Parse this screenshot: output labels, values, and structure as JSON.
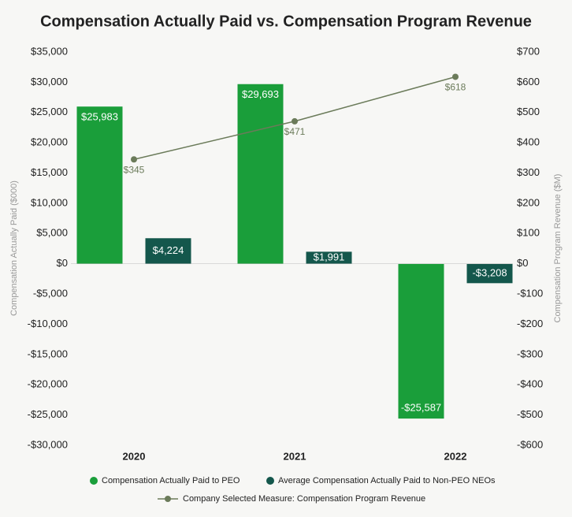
{
  "chart_data": {
    "type": "bar_line",
    "title": "Compensation Actually Paid vs. Compensation Program Revenue",
    "y_label": "Compensation Actually Paid ($000)",
    "y2_label": "Compensation Program Revenue ($M)",
    "categories": [
      "2020",
      "2021",
      "2022"
    ],
    "series": [
      {
        "name": "Compensation Actually Paid to PEO",
        "type": "bar",
        "color": "#1a9e3a",
        "values": [
          25983,
          29693,
          -25587
        ],
        "value_labels": [
          "$25,983",
          "$29,693",
          "-$25,587"
        ]
      },
      {
        "name": "Average Compensation Actually Paid to Non-PEO NEOs",
        "type": "bar",
        "color": "#14574c",
        "values": [
          4224,
          1991,
          -3208
        ],
        "value_labels": [
          "$4,224",
          "$1,991",
          "-$3,208"
        ]
      },
      {
        "name": "Company Selected Measure: Compensation Program Revenue",
        "type": "line",
        "axis": "y2",
        "color": "#6b7b5a",
        "values": [
          345,
          471,
          618
        ],
        "value_labels": [
          "$345",
          "$471",
          "$618"
        ]
      }
    ],
    "ylim": [
      -30000,
      35000
    ],
    "yticks": [
      {
        "value": -30000,
        "label": "-$30,000"
      },
      {
        "value": -25000,
        "label": "-$25,000"
      },
      {
        "value": -20000,
        "label": "-$20,000"
      },
      {
        "value": -15000,
        "label": "-$15,000"
      },
      {
        "value": -10000,
        "label": "-$10,000"
      },
      {
        "value": -5000,
        "label": "-$5,000"
      },
      {
        "value": 0,
        "label": "$0"
      },
      {
        "value": 5000,
        "label": "$5,000"
      },
      {
        "value": 10000,
        "label": "$10,000"
      },
      {
        "value": 15000,
        "label": "$15,000"
      },
      {
        "value": 20000,
        "label": "$20,000"
      },
      {
        "value": 25000,
        "label": "$25,000"
      },
      {
        "value": 30000,
        "label": "$30,000"
      },
      {
        "value": 35000,
        "label": "$35,000"
      }
    ],
    "y2lim": [
      -600,
      700
    ],
    "y2ticks": [
      {
        "value": -600,
        "label": "-$600"
      },
      {
        "value": -500,
        "label": "-$500"
      },
      {
        "value": -400,
        "label": "-$400"
      },
      {
        "value": -300,
        "label": "-$300"
      },
      {
        "value": -200,
        "label": "-$200"
      },
      {
        "value": -100,
        "label": "-$100"
      },
      {
        "value": 0,
        "label": "$0"
      },
      {
        "value": 100,
        "label": "$100"
      },
      {
        "value": 200,
        "label": "$200"
      },
      {
        "value": 300,
        "label": "$300"
      },
      {
        "value": 400,
        "label": "$400"
      },
      {
        "value": 500,
        "label": "$500"
      },
      {
        "value": 600,
        "label": "$600"
      },
      {
        "value": 700,
        "label": "$700"
      }
    ],
    "grid": false,
    "legend": "bottom"
  }
}
